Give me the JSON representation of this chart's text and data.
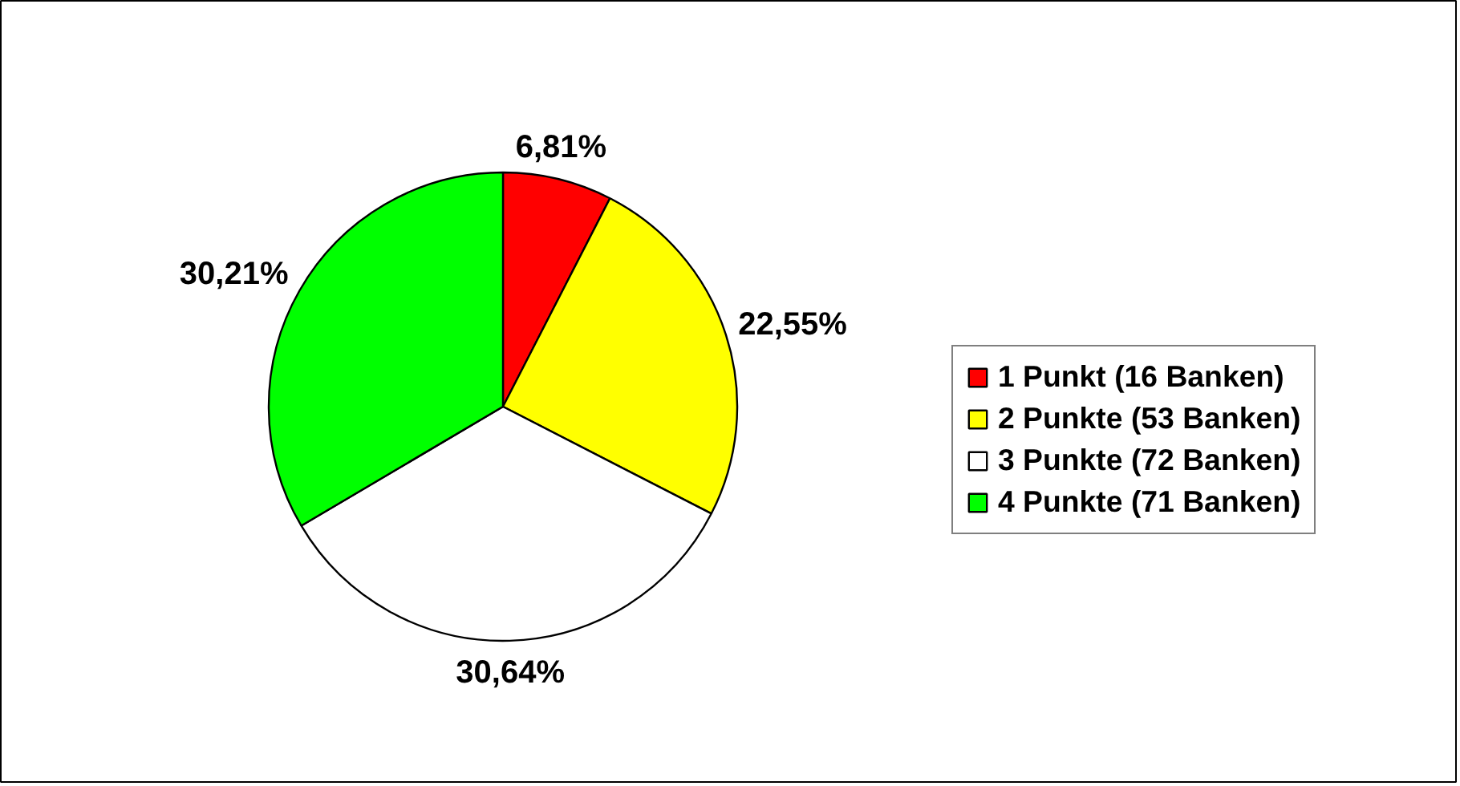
{
  "chart_data": {
    "type": "pie",
    "categories": [
      "1 Punkt (16 Banken)",
      "2 Punkte (53 Banken)",
      "3 Punkte (72 Banken)",
      "4 Punkte (71 Banken)"
    ],
    "values": [
      6.81,
      22.55,
      30.64,
      30.21
    ],
    "value_labels": [
      "6,81%",
      "22,55%",
      "30,64%",
      "30,21%"
    ],
    "colors": [
      "#ff0000",
      "#ffff00",
      "#ffffff",
      "#00ff00"
    ],
    "legend": "right"
  }
}
